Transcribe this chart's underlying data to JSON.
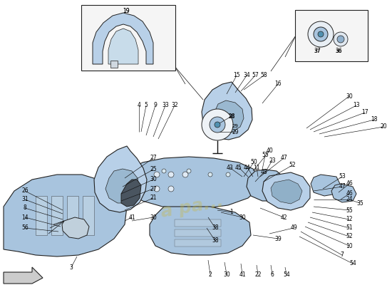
{
  "bg_color": "#ffffff",
  "part_color": "#a8c4de",
  "part_color2": "#b8d0e8",
  "part_color3": "#90b0cc",
  "outline_color": "#222222",
  "line_color": "#111111",
  "text_color": "#000000",
  "fig_width": 5.5,
  "fig_height": 4.0,
  "dpi": 100
}
